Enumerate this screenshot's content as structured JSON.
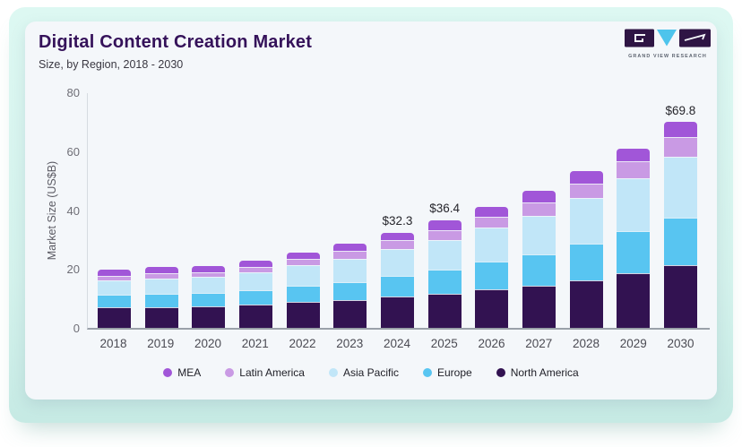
{
  "header": {
    "title": "Digital Content Creation Market",
    "subtitle": "Size, by Region, 2018 - 2030"
  },
  "logo": {
    "text": "GRAND VIEW RESEARCH",
    "dark_color": "#2e1544",
    "accent_color": "#4ec4ec"
  },
  "colors": {
    "card_background": "#f4f7fa",
    "panel_background": "#d6f3ed",
    "title_text": "#35125a",
    "axis_line": "#9aa1a9"
  },
  "chart_data": {
    "type": "bar",
    "stacked": true,
    "title": "Digital Content Creation Market",
    "subtitle": "Size, by Region, 2018 - 2030",
    "ylabel": "Market Size (US$B)",
    "xlabel": "",
    "ylim": [
      0,
      80
    ],
    "yticks": [
      0,
      20,
      40,
      60,
      80
    ],
    "grid": false,
    "legend_position": "bottom",
    "categories": [
      "2018",
      "2019",
      "2020",
      "2021",
      "2022",
      "2023",
      "2024",
      "2025",
      "2026",
      "2027",
      "2028",
      "2029",
      "2030"
    ],
    "series": [
      {
        "name": "North America",
        "color": "#321251",
        "values": [
          6.9,
          7.1,
          7.2,
          7.9,
          8.7,
          9.4,
          10.6,
          11.5,
          13.1,
          14.3,
          16.2,
          18.6,
          21.2
        ]
      },
      {
        "name": "Europe",
        "color": "#58c5f1",
        "values": [
          4.3,
          4.5,
          4.6,
          5.0,
          5.6,
          6.2,
          7.2,
          8.3,
          9.4,
          10.6,
          12.3,
          14.4,
          16.2
        ]
      },
      {
        "name": "Asia Pacific",
        "color": "#c1e6f8",
        "values": [
          5.0,
          5.3,
          5.4,
          6.0,
          6.9,
          7.8,
          8.9,
          10.0,
          11.7,
          13.3,
          15.5,
          17.8,
          20.8
        ]
      },
      {
        "name": "Latin America",
        "color": "#c99ae4",
        "values": [
          1.6,
          1.7,
          1.7,
          1.9,
          2.2,
          2.7,
          3.0,
          3.4,
          3.6,
          4.5,
          5.1,
          5.8,
          6.5
        ]
      },
      {
        "name": "MEA",
        "color": "#a156d8",
        "values": [
          2.0,
          2.0,
          2.0,
          2.1,
          2.2,
          2.5,
          2.6,
          3.2,
          3.3,
          3.9,
          4.2,
          4.4,
          5.1
        ]
      }
    ],
    "legend_order": [
      "MEA",
      "Latin America",
      "Asia Pacific",
      "Europe",
      "North America"
    ],
    "annotations": [
      {
        "category": "2024",
        "text": "$32.3"
      },
      {
        "category": "2025",
        "text": "$36.4"
      },
      {
        "category": "2030",
        "text": "$69.8"
      }
    ]
  }
}
